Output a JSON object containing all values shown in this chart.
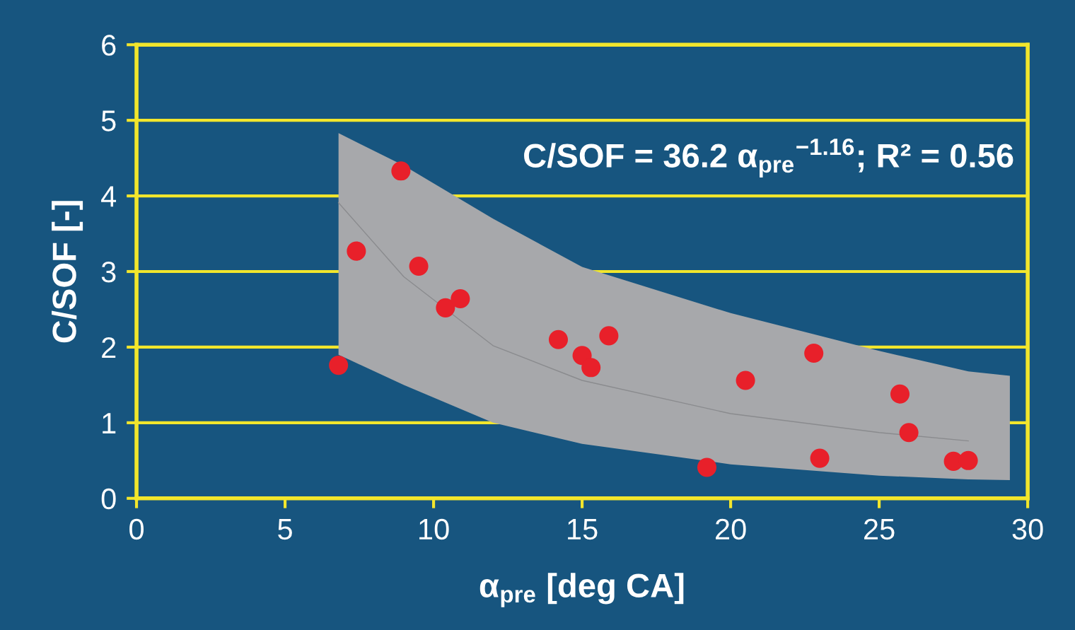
{
  "chart_data": {
    "type": "scatter",
    "xlabel": "α$_{pre}$ [deg CA]",
    "ylabel": "C/SOF [-]",
    "annotations": [
      "C/SOF = 36.2 α$_{pre}$$^{−1.16}$; R² = 0.56"
    ],
    "xlim": [
      0,
      30
    ],
    "xticks": [
      0,
      5,
      10,
      15,
      20,
      25,
      30
    ],
    "ylim": [
      0,
      6
    ],
    "yticks": [
      0,
      1,
      2,
      3,
      4,
      5,
      6
    ],
    "grid": "y",
    "series": [
      {
        "type": "line",
        "marker": "none",
        "color": "#8a8b8e",
        "line_style": "solid",
        "x": [
          6.8,
          9,
          12,
          15,
          20,
          25,
          28,
          29.4
        ],
        "values": [
          3.91,
          2.93,
          2.02,
          1.56,
          1.12,
          0.87,
          0.76,
          null
        ],
        "lower": [
          1.9,
          1.5,
          1.0,
          0.72,
          0.45,
          0.3,
          0.25,
          0.24
        ],
        "upper": [
          4.83,
          4.4,
          3.7,
          3.06,
          2.45,
          1.95,
          1.68,
          1.62
        ]
      },
      {
        "marker": "circle",
        "color": "#e8202a",
        "x": [
          6.8,
          7.4,
          8.9,
          9.5,
          10.4,
          10.9,
          14.2,
          15.0,
          15.3,
          15.9,
          19.2,
          20.5,
          22.8,
          23.0,
          25.7,
          26.0,
          27.5,
          28.0
        ],
        "values": [
          1.76,
          3.27,
          4.33,
          3.07,
          2.52,
          2.64,
          2.1,
          1.89,
          1.73,
          2.15,
          0.41,
          1.56,
          1.92,
          0.53,
          1.38,
          0.87,
          0.49,
          0.5
        ]
      }
    ]
  }
}
